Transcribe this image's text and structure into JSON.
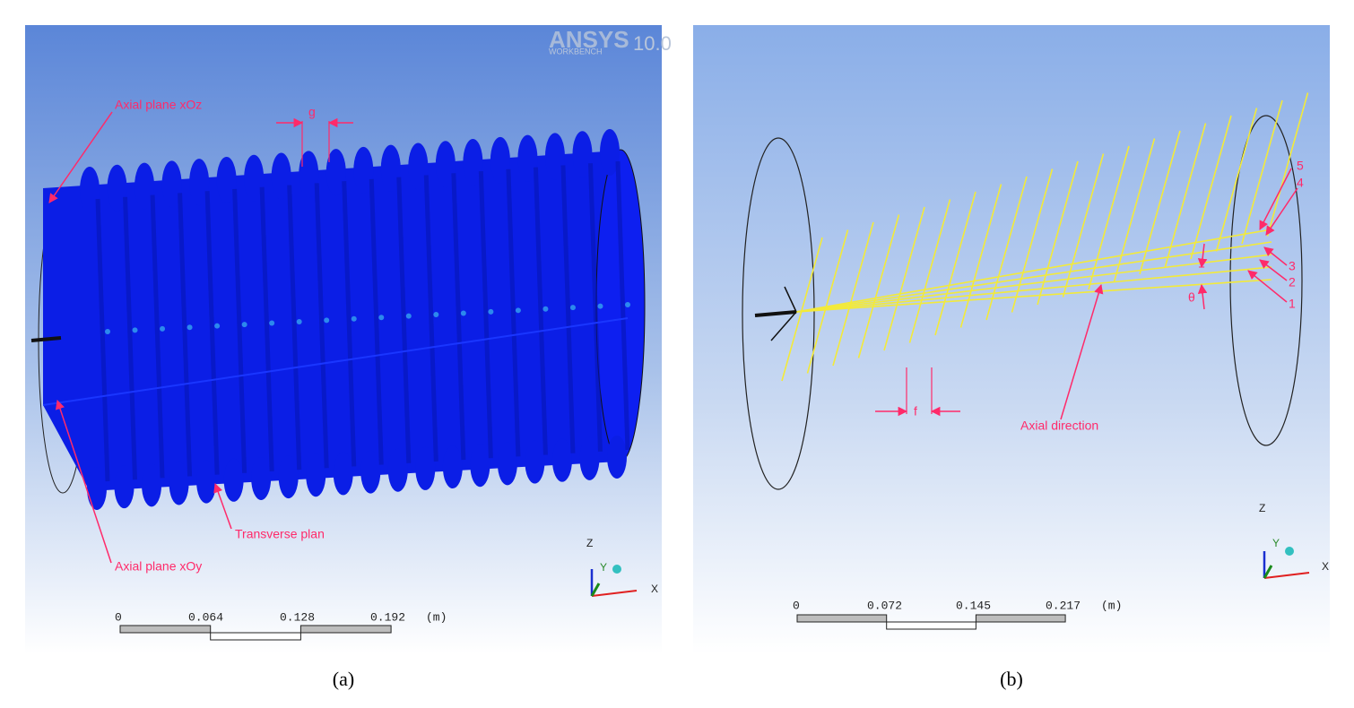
{
  "panels": [
    {
      "caption": "(a)",
      "logo": {
        "brand": "ANSYS",
        "product": "WORKBENCH",
        "version": "10.0"
      },
      "labels": {
        "axial_plane_xoz": "Axial plane xOz",
        "gap": "g",
        "transverse_plane": "Transverse plan",
        "axial_plane_xoy": "Axial plane xOy"
      },
      "axes": {
        "z": "Z",
        "y": "Y",
        "x": "X"
      },
      "scale": {
        "ticks": [
          "0",
          "0.064",
          "0.128",
          "0.192"
        ],
        "unit": "(m)"
      }
    },
    {
      "caption": "(b)",
      "labels": {
        "wires": [
          "1",
          "2",
          "3",
          "4",
          "5"
        ],
        "angle": "θ",
        "pitch": "f",
        "axial_direction": "Axial direction"
      },
      "axes": {
        "z": "Z",
        "y": "Y",
        "x": "X"
      },
      "scale": {
        "ticks": [
          "0",
          "0.072",
          "0.145",
          "0.217"
        ],
        "unit": "(m)"
      }
    }
  ]
}
